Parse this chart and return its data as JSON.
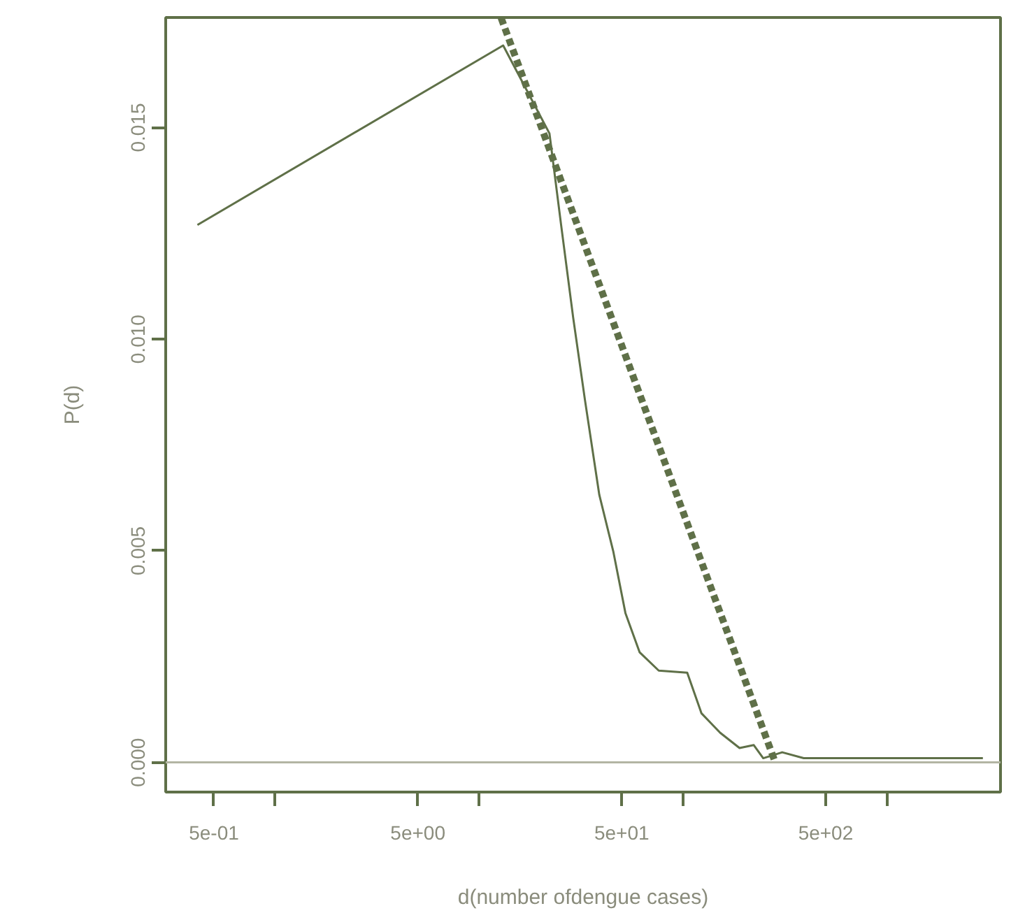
{
  "chart_data": {
    "type": "line",
    "xlabel": "d(number ofdengue cases)",
    "ylabel": "P(d)",
    "log": "x",
    "xlim": [
      0.29,
      3600
    ],
    "ylim": [
      -0.0007,
      0.0176
    ],
    "xticks": [
      {
        "value": 0.5,
        "label": "5e-01"
      },
      {
        "value": 1,
        "label": null
      },
      {
        "value": 5,
        "label": "5e+00"
      },
      {
        "value": 10,
        "label": null
      },
      {
        "value": 50,
        "label": "5e+01"
      },
      {
        "value": 100,
        "label": null
      },
      {
        "value": 500,
        "label": "5e+02"
      },
      {
        "value": 1000,
        "label": null
      }
    ],
    "yticks": [
      {
        "value": 0,
        "label": "0.000"
      },
      {
        "value": 0.005,
        "label": "0.005"
      },
      {
        "value": 0.01,
        "label": "0.010"
      },
      {
        "value": 0.015,
        "label": "0.015"
      }
    ],
    "grid": false,
    "ref_lines": [
      {
        "axis": "y",
        "value": 0,
        "color": "#b3b5a3"
      }
    ],
    "series": [
      {
        "line_style": "solid",
        "color": "#5f7048",
        "x": [
          0.415,
          13.1,
          22.1,
          25.2,
          28.9,
          33.0,
          38.8,
          45.5,
          52.1,
          61.2,
          75.9,
          104.7,
          123,
          152,
          189,
          222,
          247,
          306,
          390,
          550,
          1160,
          2950
        ],
        "values": [
          0.0127,
          0.01694,
          0.01486,
          0.0127,
          0.0105,
          0.00856,
          0.00632,
          0.00497,
          0.00353,
          0.0026,
          0.00217,
          0.00212,
          0.00116,
          0.0007,
          0.00034,
          0.00041,
          0.0001,
          0.00024,
          0.0001,
          0.0001,
          0.0001,
          0.0001
        ]
      },
      {
        "line_style": "dashed",
        "color": "#5f7048",
        "x": [
          12.8,
          283
        ],
        "values": [
          0.01759,
          0
        ]
      }
    ]
  }
}
